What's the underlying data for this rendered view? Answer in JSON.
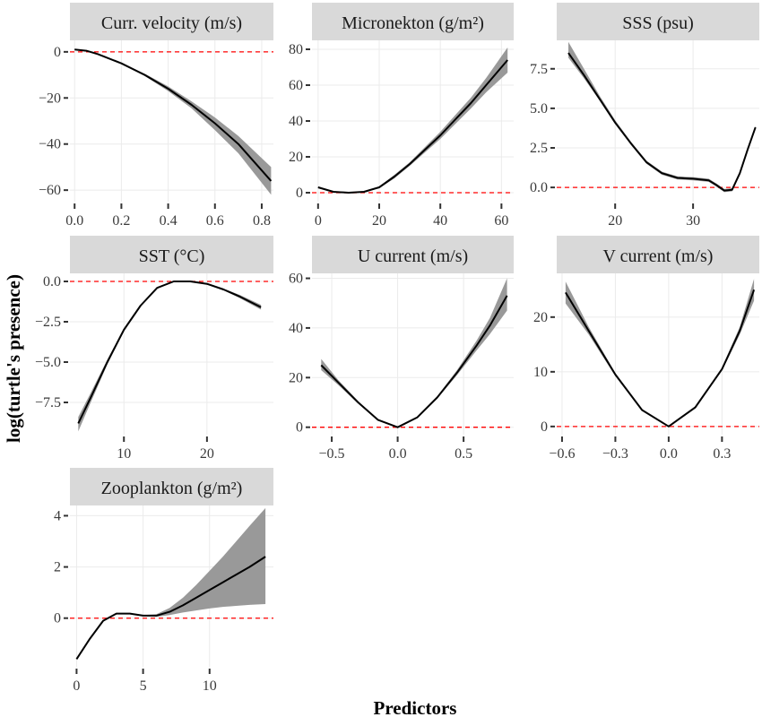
{
  "ylabel": "log(turtle's presence)",
  "xlabel": "Predictors",
  "colors": {
    "line": "#000000",
    "band": "#999999",
    "zero_line": "#ff0000",
    "strip": "#d9d9d9",
    "grid": "#ebebeb"
  },
  "chart_data": [
    {
      "type": "line",
      "title": "Curr. velocity (m/s)",
      "grid": true,
      "xlim": [
        -0.02,
        0.85
      ],
      "ylim": [
        -65,
        5
      ],
      "xticks": [
        0.0,
        0.2,
        0.4,
        0.6,
        0.8
      ],
      "xtick_labels": [
        "0.0",
        "0.2",
        "0.4",
        "0.6",
        "0.8"
      ],
      "yticks": [
        0,
        -20,
        -40,
        -60
      ],
      "ytick_labels": [
        "0",
        "−20",
        "−40",
        "−60"
      ],
      "series": [
        {
          "x": [
            0,
            0.05,
            0.1,
            0.2,
            0.3,
            0.4,
            0.5,
            0.6,
            0.7,
            0.84
          ],
          "y": [
            1,
            0.5,
            -1,
            -5,
            -10,
            -16,
            -23,
            -31,
            -40,
            -56
          ],
          "lower": [
            1,
            0.5,
            -1,
            -5.2,
            -10.5,
            -17,
            -24.5,
            -34,
            -44,
            -62
          ],
          "upper": [
            1,
            0.5,
            -1,
            -4.8,
            -9.5,
            -15,
            -21.5,
            -28.5,
            -36.5,
            -50
          ]
        }
      ]
    },
    {
      "type": "line",
      "title": "Micronekton (g/m²)",
      "grid": true,
      "xlim": [
        -2,
        64
      ],
      "ylim": [
        -5,
        85
      ],
      "xticks": [
        0,
        20,
        40,
        60
      ],
      "xtick_labels": [
        "0",
        "20",
        "40",
        "60"
      ],
      "yticks": [
        0,
        20,
        40,
        60,
        80
      ],
      "ytick_labels": [
        "0",
        "20",
        "40",
        "60",
        "80"
      ],
      "series": [
        {
          "x": [
            0,
            5,
            10,
            15,
            20,
            25,
            30,
            35,
            40,
            45,
            50,
            55,
            62
          ],
          "y": [
            3,
            0.5,
            0,
            0.5,
            3,
            9,
            16,
            24,
            32,
            41,
            50,
            60,
            74
          ],
          "lower": [
            2.5,
            0.3,
            0,
            0.3,
            2.5,
            8,
            15,
            22.5,
            30,
            38.5,
            47,
            56,
            67
          ],
          "upper": [
            3.5,
            0.7,
            0,
            0.7,
            3.5,
            10,
            17,
            25.5,
            34,
            43.5,
            53,
            64,
            81
          ]
        }
      ]
    },
    {
      "type": "line",
      "title": "SSS (psu)",
      "grid": true,
      "xlim": [
        12.5,
        38.5
      ],
      "ylim": [
        -0.9,
        9.3
      ],
      "xticks": [
        20,
        30
      ],
      "xtick_labels": [
        "20",
        "30"
      ],
      "yticks": [
        0,
        2.5,
        5,
        7.5
      ],
      "ytick_labels": [
        "0.0",
        "2.5",
        "5.0",
        "7.5"
      ],
      "series": [
        {
          "x": [
            14,
            16,
            18,
            20,
            22,
            24,
            26,
            28,
            30,
            32,
            33,
            34,
            35,
            36,
            37,
            38
          ],
          "y": [
            8.5,
            7.1,
            5.6,
            4.1,
            2.8,
            1.6,
            0.9,
            0.6,
            0.55,
            0.45,
            0.15,
            -0.2,
            -0.15,
            0.9,
            2.4,
            3.8
          ],
          "lower": [
            8.2,
            6.9,
            5.5,
            4.0,
            2.7,
            1.5,
            0.8,
            0.5,
            0.45,
            0.35,
            0.05,
            -0.3,
            -0.25,
            0.8,
            2.3,
            3.7
          ],
          "upper": [
            9.2,
            7.5,
            5.8,
            4.25,
            2.9,
            1.7,
            1.0,
            0.7,
            0.65,
            0.55,
            0.25,
            -0.1,
            -0.05,
            1.0,
            2.5,
            3.9
          ]
        }
      ]
    },
    {
      "type": "line",
      "title": "SST (°C)",
      "grid": true,
      "xlim": [
        3.5,
        28
      ],
      "ylim": [
        -9.5,
        0.5
      ],
      "xticks": [
        10,
        20
      ],
      "xtick_labels": [
        "10",
        "20"
      ],
      "yticks": [
        0,
        -2.5,
        -5,
        -7.5
      ],
      "ytick_labels": [
        "0.0",
        "−2.5",
        "−5.0",
        "−7.5"
      ],
      "series": [
        {
          "x": [
            4.5,
            6,
            8,
            10,
            12,
            14,
            16,
            18,
            20,
            22,
            24,
            26.5
          ],
          "y": [
            -8.8,
            -7.2,
            -5.0,
            -3.0,
            -1.5,
            -0.4,
            0,
            0,
            -0.15,
            -0.5,
            -0.95,
            -1.6
          ],
          "lower": [
            -9.3,
            -7.5,
            -5.15,
            -3.1,
            -1.55,
            -0.45,
            0,
            0,
            -0.2,
            -0.55,
            -1.05,
            -1.75
          ],
          "upper": [
            -8.4,
            -6.9,
            -4.85,
            -2.9,
            -1.45,
            -0.35,
            0,
            0,
            -0.1,
            -0.45,
            -0.85,
            -1.45
          ]
        }
      ]
    },
    {
      "type": "line",
      "title": "U current (m/s)",
      "grid": true,
      "xlim": [
        -0.65,
        0.88
      ],
      "ylim": [
        -3,
        62
      ],
      "xticks": [
        -0.5,
        0,
        0.5
      ],
      "xtick_labels": [
        "−0.5",
        "0.0",
        "0.5"
      ],
      "yticks": [
        0,
        20,
        40,
        60
      ],
      "ytick_labels": [
        "0",
        "20",
        "40",
        "60"
      ],
      "series": [
        {
          "x": [
            -0.58,
            -0.45,
            -0.3,
            -0.15,
            0,
            0.15,
            0.3,
            0.45,
            0.6,
            0.7,
            0.83
          ],
          "y": [
            25,
            18,
            10,
            3,
            0,
            4,
            12,
            22,
            33,
            41,
            53
          ],
          "lower": [
            23,
            17,
            9.5,
            2.8,
            0,
            3.8,
            11.5,
            21,
            31,
            37.5,
            47
          ],
          "upper": [
            27.5,
            19,
            10.5,
            3.2,
            0,
            4.2,
            12.5,
            23,
            35,
            44,
            60
          ]
        }
      ]
    },
    {
      "type": "line",
      "title": "V current (m/s)",
      "grid": true,
      "xlim": [
        -0.63,
        0.51
      ],
      "ylim": [
        -1.5,
        28
      ],
      "xticks": [
        -0.6,
        -0.3,
        0,
        0.3
      ],
      "xtick_labels": [
        "−0.6",
        "−0.3",
        "0.0",
        "0.3"
      ],
      "yticks": [
        0,
        10,
        20
      ],
      "ytick_labels": [
        "0",
        "10",
        "20"
      ],
      "series": [
        {
          "x": [
            -0.58,
            -0.45,
            -0.3,
            -0.15,
            0,
            0.15,
            0.3,
            0.4,
            0.48
          ],
          "y": [
            24.5,
            17.5,
            9.5,
            3,
            0,
            3.5,
            10.5,
            17.5,
            25
          ],
          "lower": [
            22.5,
            16.8,
            9.2,
            2.9,
            0,
            3.4,
            10.2,
            16.8,
            23
          ],
          "upper": [
            26.5,
            18.2,
            9.8,
            3.1,
            0,
            3.6,
            10.8,
            18.2,
            27
          ]
        }
      ]
    },
    {
      "type": "line",
      "title": "Zooplankton (g/m²)",
      "grid": true,
      "xlim": [
        -0.5,
        14.8
      ],
      "ylim": [
        -1.9,
        4.4
      ],
      "xticks": [
        0,
        5,
        10
      ],
      "xtick_labels": [
        "0",
        "5",
        "10"
      ],
      "yticks": [
        0,
        2,
        4
      ],
      "ytick_labels": [
        "0",
        "2",
        "4"
      ],
      "series": [
        {
          "x": [
            0,
            1,
            2,
            3,
            4,
            5,
            6,
            7,
            8,
            9,
            10,
            11,
            12,
            13,
            14.2
          ],
          "y": [
            -1.6,
            -0.8,
            -0.1,
            0.18,
            0.18,
            0.1,
            0.1,
            0.25,
            0.5,
            0.8,
            1.1,
            1.4,
            1.7,
            2.0,
            2.4
          ],
          "lower": [
            -1.6,
            -0.8,
            -0.1,
            0.17,
            0.17,
            0.08,
            0.05,
            0.12,
            0.22,
            0.3,
            0.38,
            0.44,
            0.48,
            0.52,
            0.55
          ],
          "upper": [
            -1.6,
            -0.8,
            -0.1,
            0.19,
            0.19,
            0.12,
            0.15,
            0.4,
            0.8,
            1.3,
            1.85,
            2.4,
            3.0,
            3.6,
            4.3
          ]
        }
      ]
    }
  ]
}
